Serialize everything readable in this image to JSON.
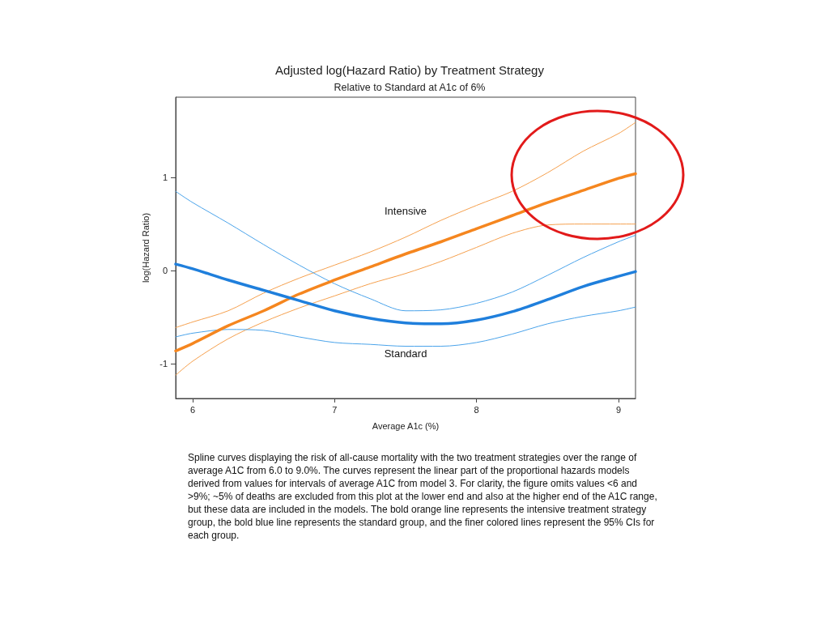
{
  "chart_data": {
    "type": "line",
    "title": "Adjusted log(Hazard Ratio) by Treatment Strategy",
    "subtitle": "Relative to Standard at A1c of 6%",
    "xlabel": "Average A1c (%)",
    "ylabel": "log(Hazard Ratio)",
    "x": [
      5.88,
      6.0,
      6.25,
      6.5,
      6.75,
      7.0,
      7.25,
      7.5,
      7.75,
      8.0,
      8.25,
      8.5,
      8.75,
      9.0,
      9.12
    ],
    "series": [
      {
        "color": "#f5a04e",
        "values": [
          -0.61,
          -0.55,
          -0.43,
          -0.24,
          -0.08,
          0.06,
          0.2,
          0.36,
          0.54,
          0.7,
          0.85,
          1.05,
          1.28,
          1.47,
          1.59
        ]
      },
      {
        "color": "#f5a04e",
        "values": [
          -1.12,
          -0.97,
          -0.73,
          -0.55,
          -0.4,
          -0.27,
          -0.14,
          -0.03,
          0.1,
          0.25,
          0.4,
          0.49,
          0.5,
          0.5,
          0.5
        ]
      },
      {
        "color": "#4aa3ea",
        "values": [
          0.85,
          0.73,
          0.51,
          0.28,
          0.06,
          -0.14,
          -0.3,
          -0.43,
          -0.42,
          -0.35,
          -0.23,
          -0.05,
          0.14,
          0.31,
          0.38
        ]
      },
      {
        "color": "#4aa3ea",
        "values": [
          -0.71,
          -0.67,
          -0.63,
          -0.64,
          -0.71,
          -0.77,
          -0.79,
          -0.81,
          -0.81,
          -0.77,
          -0.68,
          -0.57,
          -0.49,
          -0.43,
          -0.39
        ]
      },
      {
        "name": "Intensive",
        "color": "#f5861f",
        "values": [
          -0.86,
          -0.78,
          -0.59,
          -0.43,
          -0.25,
          -0.1,
          0.04,
          0.18,
          0.31,
          0.45,
          0.59,
          0.73,
          0.86,
          0.99,
          1.04
        ]
      },
      {
        "name": "Standard",
        "color": "#1f7fdc",
        "values": [
          0.07,
          0.02,
          -0.1,
          -0.21,
          -0.32,
          -0.43,
          -0.51,
          -0.56,
          -0.57,
          -0.53,
          -0.44,
          -0.31,
          -0.17,
          -0.06,
          -0.01
        ]
      }
    ],
    "xlim": [
      5.88,
      9.12
    ],
    "xticks": [
      6,
      7,
      8,
      9
    ],
    "ylim": [
      -1.37,
      1.86
    ],
    "yticks": [
      -1,
      0,
      1
    ],
    "marker": "none",
    "line_style": "solid",
    "annotations": [
      "Spline curves displaying the risk of all-cause mortality with the two treatment strategies over the range of average A1C from 6.0 to 9.0%. The curves represent the linear part of the proportional hazards models derived from values for intervals of average A1C from model 3. For clarity, the figure omits values <6 and >9%; ~5% of deaths are excluded from this plot at the lower end and also at the higher end of the A1C range, but these data are included in the models. The bold orange line represents the intensive treatment strategy group, the bold blue line represents the standard group, and the finer colored lines represent the 95% CIs for each group."
    ]
  }
}
